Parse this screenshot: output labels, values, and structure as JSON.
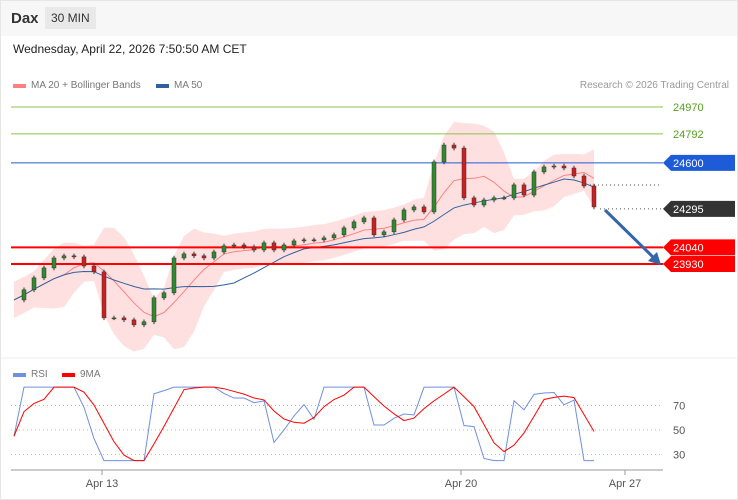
{
  "header": {
    "title": "Dax",
    "timeframe": "30 MIN",
    "datetime": "Wednesday, April 22, 2026 7:50:50 AM CET"
  },
  "legend": {
    "ma20": "MA 20 + Bollinger Bands",
    "ma50": "MA 50",
    "rsi": "RSI",
    "rsi_ma": "9MA"
  },
  "copyright": "Research © 2026 Trading Central",
  "colors": {
    "ma20": "#ff8080",
    "ma50": "#3060a0",
    "bands": "#ffd6d6",
    "up": "#2e8b2e",
    "down": "#cc2020",
    "resistance": "#8bc34a",
    "pivot": "#1e5bd8",
    "support": "#ff0000",
    "last": "#333333",
    "rsi": "#6f8fe0",
    "rsi_ma": "#ff0000",
    "arrow": "#3366aa"
  },
  "chart_data": [
    {
      "type": "candlestick",
      "yrange": [
        23500,
        25000
      ],
      "x_ticks": [
        "Apr 13",
        "Apr 20",
        "Apr 27"
      ],
      "closes": [
        23692,
        23759,
        23838,
        23904,
        23970,
        23984,
        23977,
        23917,
        23878,
        23573,
        23573,
        23560,
        23527,
        23547,
        23706,
        23739,
        23970,
        23997,
        23984,
        23970,
        24010,
        24050,
        24056,
        24043,
        24023,
        24070,
        24023,
        24056,
        24083,
        24090,
        24090,
        24103,
        24123,
        24169,
        24209,
        24235,
        24123,
        24143,
        24222,
        24288,
        24308,
        24275,
        24606,
        24718,
        24698,
        24368,
        24321,
        24354,
        24368,
        24368,
        24454,
        24387,
        24540,
        24573,
        24579,
        24566,
        24513,
        24447,
        24308
      ],
      "levels": [
        {
          "value": 24970,
          "kind": "resistance",
          "label": "24970"
        },
        {
          "value": 24792,
          "kind": "resistance",
          "label": "24792"
        },
        {
          "value": 24600,
          "kind": "pivot",
          "label": "24600"
        },
        {
          "value": 24295,
          "kind": "last",
          "label": "24295"
        },
        {
          "value": 24040,
          "kind": "support",
          "label": "24040"
        },
        {
          "value": 23930,
          "kind": "support",
          "label": "23930"
        }
      ],
      "arrow": "down"
    },
    {
      "type": "line",
      "name": "RSI",
      "yrange": [
        20,
        80
      ],
      "y_ticks": [
        "70",
        "50",
        "30"
      ],
      "series": [
        "RSI",
        "9MA"
      ]
    }
  ]
}
